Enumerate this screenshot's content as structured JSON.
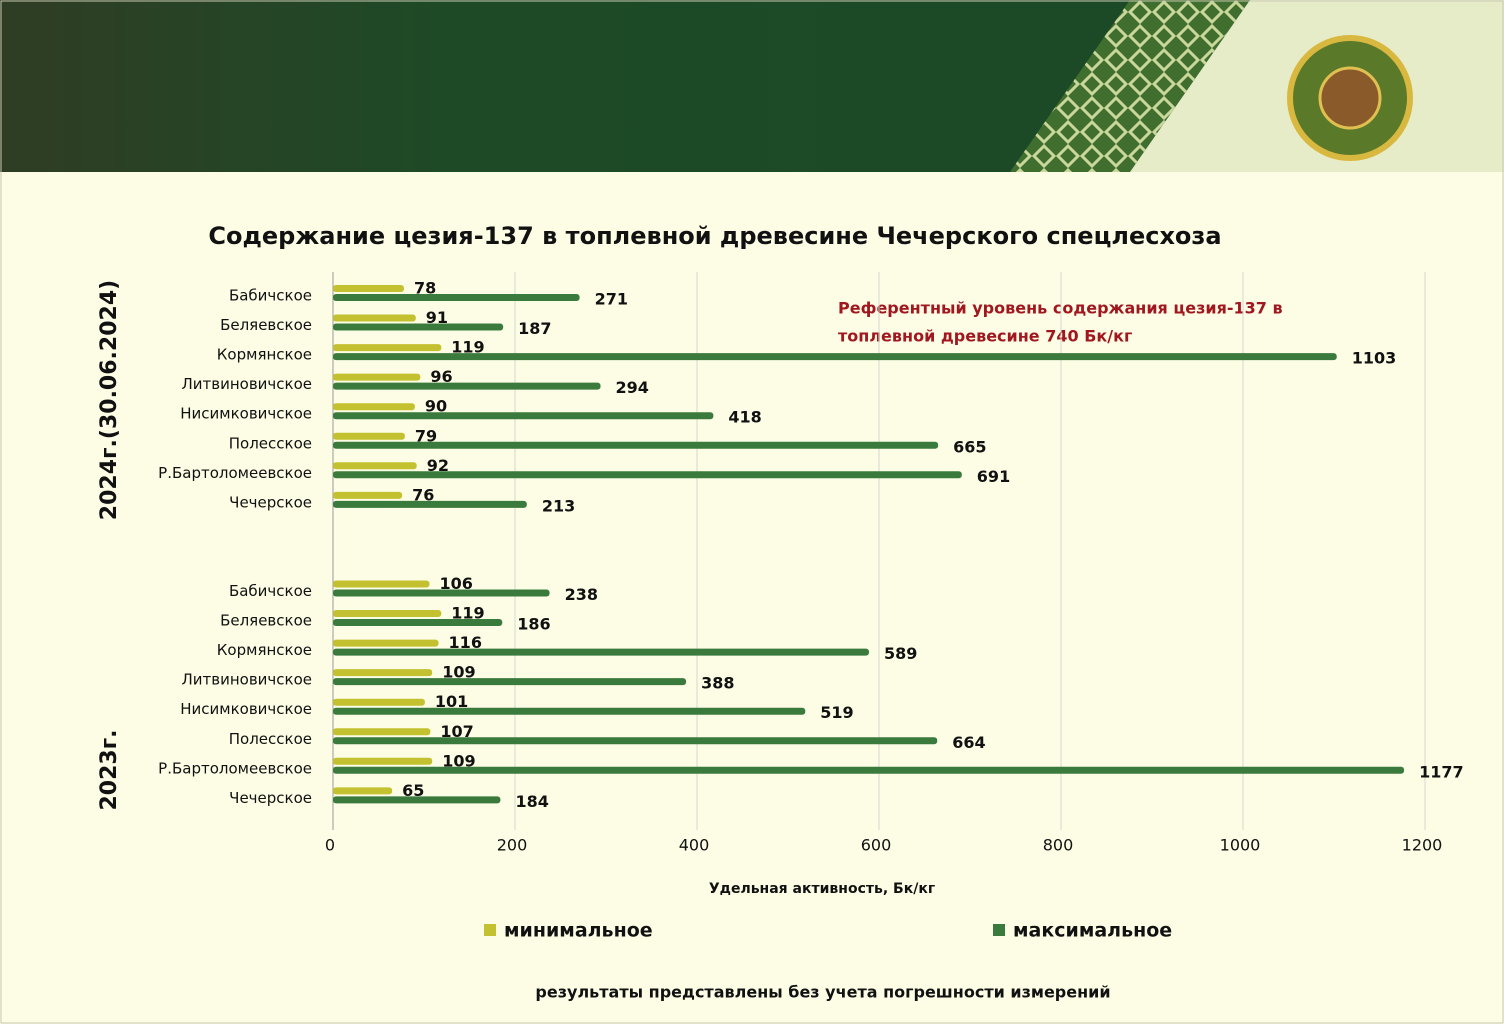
{
  "chart_data": {
    "type": "bar",
    "orientation": "horizontal",
    "title": "Содержание цезия-137 в топлевной древесине Чечерского спецлесхоза",
    "x_label": "Удельная активность, Бк/кг",
    "annotation": [
      "Референтный уровень  содержания цезия-137 в",
      " топлевной древесине 740 Бк/кг"
    ],
    "groups": [
      "2024г.(30.06.2024)",
      "2023г."
    ],
    "categories": [
      "Бабичское",
      "Беляевское",
      "Кормянское",
      "Литвиновичское",
      "Нисимковичское",
      "Полесское",
      "Р.Бартоломеевское",
      "Чечерское",
      null,
      null,
      "Бабичское",
      "Беляевское",
      "Кормянское",
      "Литвиновичское",
      "Нисимковичское",
      "Полесское",
      "Р.Бартоломеевское",
      "Чечерское"
    ],
    "series": [
      {
        "name": "минимальное",
        "color": "#c3c12f",
        "values": [
          78,
          91,
          119,
          96,
          90,
          79,
          92,
          76,
          null,
          null,
          106,
          119,
          116,
          109,
          101,
          107,
          109,
          65
        ]
      },
      {
        "name": "максимальное",
        "color": "#3b7a3d",
        "values": [
          271,
          187,
          1103,
          294,
          418,
          665,
          691,
          213,
          null,
          null,
          238,
          186,
          589,
          388,
          519,
          664,
          1177,
          184
        ]
      }
    ],
    "xlim": [
      0,
      1200
    ],
    "xticks": [
      0,
      200,
      400,
      600,
      800,
      1000,
      1200
    ],
    "grid": true,
    "footnote": "результаты представлены без учета  погрешности измерений"
  }
}
